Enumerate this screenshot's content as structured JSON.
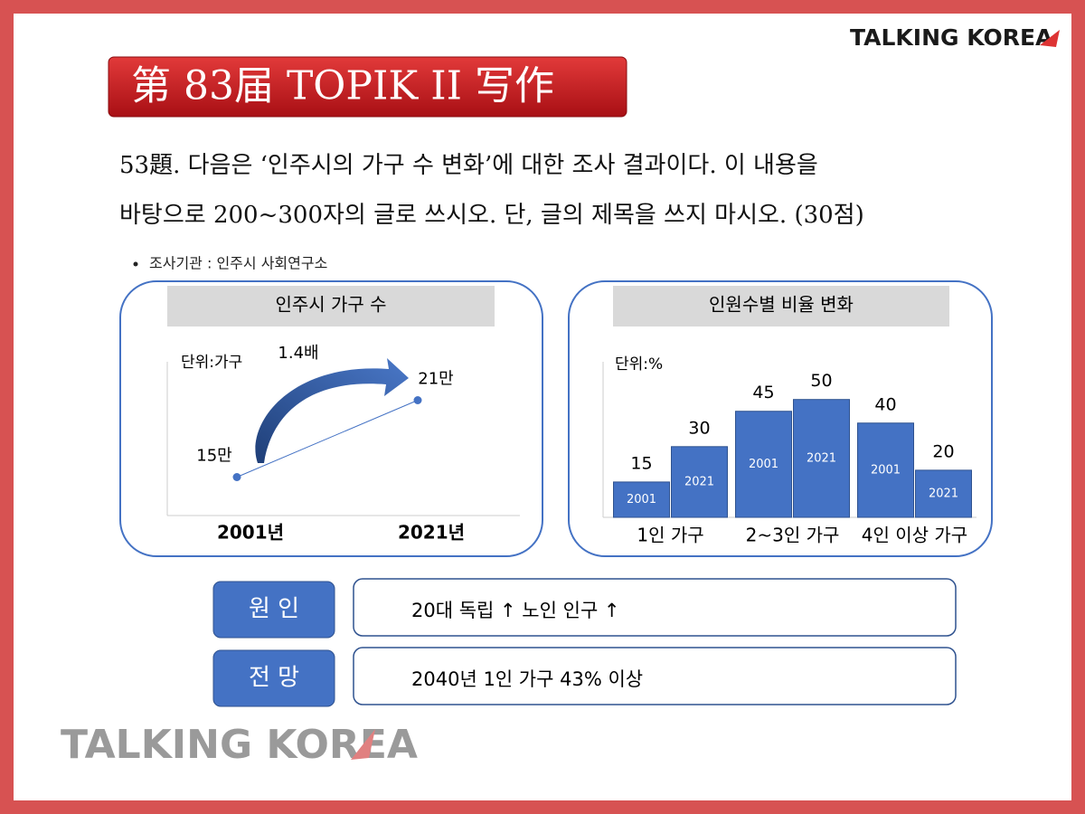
{
  "brand": "TALKING KOREA",
  "title": "第 83届 TOPIK II 写作",
  "question": [
    "53題. 다음은 ‘인주시의 가구 수 변화’에 대한 조사 결과이다. 이 내용을",
    "바탕으로 200~300자의 글로 쓰시오. 단, 글의 제목을 쓰지 마시오. (30점)"
  ],
  "source": "조사기관 : 인주시 사회연구소",
  "chart_data": [
    {
      "type": "line",
      "title": "인주시 가구 수",
      "unit": "단위:가구",
      "annotation": "1.4배",
      "categories": [
        "2001년",
        "2021년"
      ],
      "values": [
        15,
        21
      ],
      "value_labels": [
        "15만",
        "21만"
      ],
      "color": "#4472c4",
      "ylim": [
        12,
        24
      ]
    },
    {
      "type": "bar",
      "title": "인원수별 비율 변화",
      "unit": "단위:%",
      "categories": [
        "1인 가구",
        "2~3인 가구",
        "4인 이상 가구"
      ],
      "series": [
        {
          "name": "2001",
          "color": "#4472c4",
          "values": [
            15,
            45,
            40
          ]
        },
        {
          "name": "2021",
          "color": "#4472c4",
          "values": [
            30,
            50,
            20
          ]
        }
      ],
      "ylim": [
        0,
        66
      ]
    }
  ],
  "rows": [
    {
      "label": "원 인",
      "text": "20대 독립 ↑  노인 인구 ↑"
    },
    {
      "label": "전 망",
      "text": "2040년 1인 가구 43% 이상"
    }
  ],
  "watermark": "TALKING KOREA"
}
